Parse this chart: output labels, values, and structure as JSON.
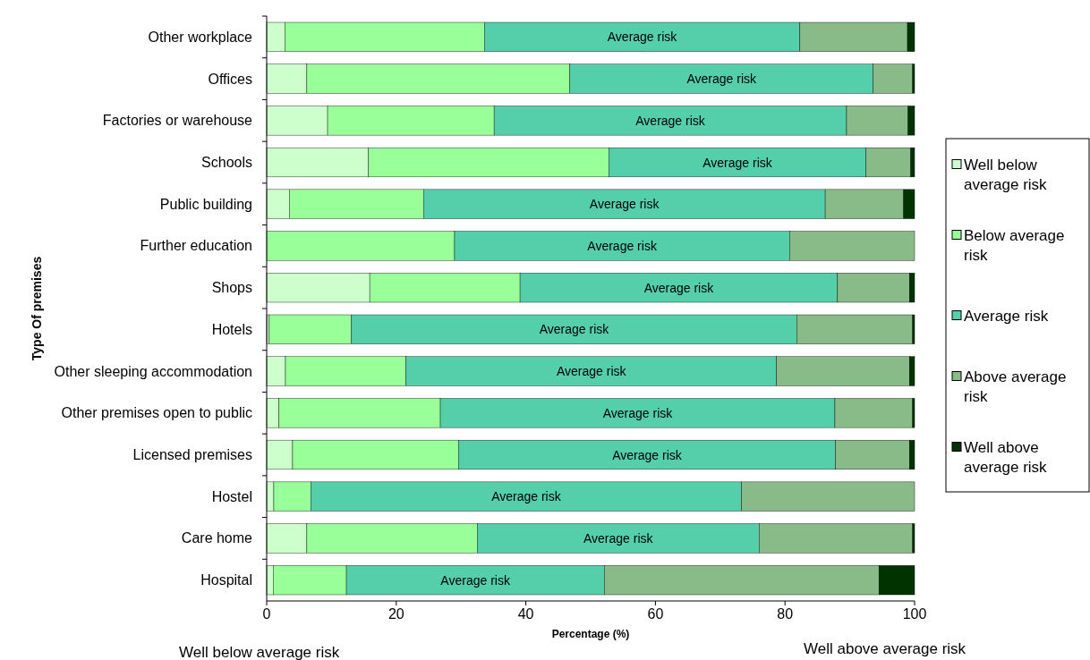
{
  "chart_data": {
    "type": "bar",
    "orientation": "horizontal",
    "stacked": true,
    "xlabel": "Percentage (%)",
    "ylabel": "Type Of premises",
    "categories": [
      "Other workplace",
      "Offices",
      "Factories or warehouse",
      "Schools",
      "Public building",
      "Further education",
      "Shops",
      "Hotels",
      "Other sleeping accommodation",
      "Other premises open to public",
      "Licensed premises",
      "Hostel",
      "Care home",
      "Hospital"
    ],
    "series": [
      {
        "name": "Well below average risk",
        "color": "#ccffcc",
        "values": [
          2.8,
          6.2,
          9.4,
          15.7,
          3.5,
          0,
          15.9,
          0.4,
          2.9,
          1.9,
          4.0,
          1.1,
          6.2,
          1.0
        ]
      },
      {
        "name": "Below average risk",
        "color": "#99ff99",
        "values": [
          30.8,
          40.6,
          25.7,
          37.1,
          20.7,
          29.0,
          23.2,
          12.7,
          18.6,
          24.9,
          25.6,
          5.7,
          26.3,
          11.3
        ]
      },
      {
        "name": "Average risk",
        "color": "#55cfaa",
        "values": [
          48.7,
          46.8,
          54.4,
          39.7,
          62.0,
          51.7,
          49.0,
          68.7,
          57.2,
          60.9,
          58.2,
          66.5,
          43.5,
          39.8
        ],
        "value_labels": [
          "Average risk",
          "Average risk",
          "Average risk",
          "Average risk",
          "Average risk",
          "Average risk",
          "Average risk",
          "Average risk",
          "Average risk",
          "Average risk",
          "Average risk",
          "Average risk",
          "Average risk",
          "Average risk"
        ]
      },
      {
        "name": "Above average risk",
        "color": "#88bb88",
        "values": [
          16.6,
          6.1,
          9.5,
          6.9,
          12.1,
          19.3,
          11.1,
          17.9,
          20.5,
          12.0,
          11.4,
          26.7,
          23.7,
          42.4
        ]
      },
      {
        "name": "Well above average risk",
        "color": "#003300",
        "values": [
          1.1,
          0.3,
          1.0,
          0.6,
          1.7,
          0,
          0.8,
          0.3,
          0.8,
          0.3,
          0.8,
          0,
          0.3,
          5.5
        ]
      }
    ],
    "xlim": [
      0,
      100
    ],
    "xticks": [
      0,
      20,
      40,
      60,
      80,
      100
    ],
    "grid": false,
    "legend": "right",
    "annotations": [
      "Well below average risk",
      "Well above average risk"
    ]
  }
}
